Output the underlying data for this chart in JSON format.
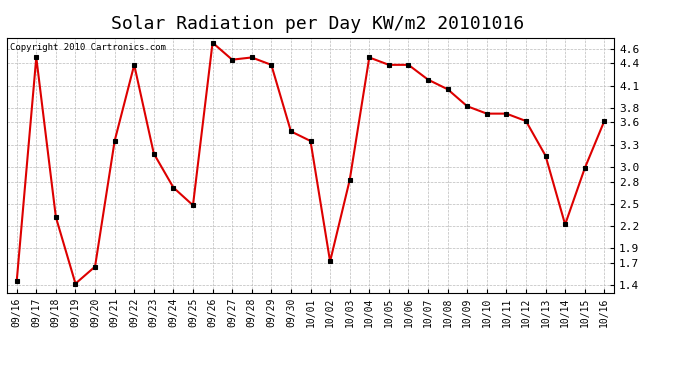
{
  "title": "Solar Radiation per Day KW/m2 20101016",
  "copyright": "Copyright 2010 Cartronics.com",
  "labels": [
    "09/16",
    "09/17",
    "09/18",
    "09/19",
    "09/20",
    "09/21",
    "09/22",
    "09/23",
    "09/24",
    "09/25",
    "09/26",
    "09/27",
    "09/28",
    "09/29",
    "09/30",
    "10/01",
    "10/02",
    "10/03",
    "10/04",
    "10/05",
    "10/06",
    "10/07",
    "10/08",
    "10/09",
    "10/10",
    "10/11",
    "10/12",
    "10/13",
    "10/14",
    "10/15",
    "10/16"
  ],
  "values": [
    1.45,
    4.48,
    2.32,
    1.42,
    1.65,
    3.35,
    4.38,
    3.18,
    2.72,
    2.48,
    4.68,
    4.45,
    4.48,
    4.38,
    3.48,
    3.35,
    1.72,
    2.82,
    4.48,
    4.38,
    4.38,
    4.18,
    4.05,
    3.82,
    3.72,
    3.72,
    3.62,
    3.15,
    2.22,
    2.98,
    3.62
  ],
  "line_color": "#dd0000",
  "marker": "s",
  "marker_size": 3,
  "marker_facecolor": "#000000",
  "marker_edgecolor": "#000000",
  "ylim": [
    1.3,
    4.75
  ],
  "yticks": [
    1.4,
    1.7,
    1.9,
    2.2,
    2.5,
    2.8,
    3.0,
    3.3,
    3.6,
    3.8,
    4.1,
    4.4,
    4.6
  ],
  "grid_color": "#bbbbbb",
  "bg_color": "#ffffff",
  "title_fontsize": 13,
  "tick_fontsize": 7,
  "copyright_fontsize": 6.5,
  "linewidth": 1.5
}
